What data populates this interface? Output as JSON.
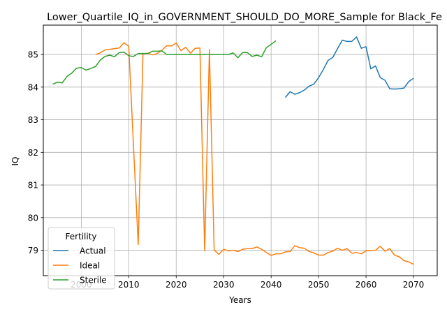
{
  "chart_data": {
    "type": "line",
    "title": "Lower_Quartile_IQ_in_GOVERNMENT_SHOULD_DO_MORE_Sample for Black_Fe",
    "xlabel": "Years",
    "ylabel": "IQ",
    "xlim": [
      1992,
      2075
    ],
    "ylim": [
      78.22,
      85.9
    ],
    "xticks": [
      2000,
      2010,
      2020,
      2030,
      2040,
      2050,
      2060,
      2070
    ],
    "yticks": [
      79,
      80,
      81,
      82,
      83,
      84,
      85
    ],
    "grid": true,
    "legend": {
      "title": "Fertility",
      "placement": "lower-left"
    },
    "series": [
      {
        "name": "Actual",
        "color": "#1f77b4",
        "points": [
          [
            2043,
            83.68
          ],
          [
            2044,
            83.86
          ],
          [
            2045,
            83.78
          ],
          [
            2046,
            83.83
          ],
          [
            2047,
            83.91
          ],
          [
            2048,
            84.03
          ],
          [
            2049,
            84.09
          ],
          [
            2050,
            84.29
          ],
          [
            2051,
            84.54
          ],
          [
            2052,
            84.82
          ],
          [
            2053,
            84.91
          ],
          [
            2054,
            85.18
          ],
          [
            2055,
            85.44
          ],
          [
            2056,
            85.4
          ],
          [
            2057,
            85.4
          ],
          [
            2058,
            85.54
          ],
          [
            2059,
            85.19
          ],
          [
            2060,
            85.24
          ],
          [
            2061,
            84.56
          ],
          [
            2062,
            84.65
          ],
          [
            2063,
            84.29
          ],
          [
            2064,
            84.21
          ],
          [
            2065,
            83.95
          ],
          [
            2066,
            83.94
          ],
          [
            2067,
            83.95
          ],
          [
            2068,
            83.97
          ],
          [
            2069,
            84.17
          ],
          [
            2070,
            84.27
          ]
        ]
      },
      {
        "name": "Ideal",
        "color": "#ff7f0e",
        "points": [
          [
            2003,
            85.0
          ],
          [
            2004,
            85.05
          ],
          [
            2005,
            85.14
          ],
          [
            2006,
            85.16
          ],
          [
            2007,
            85.18
          ],
          [
            2008,
            85.2
          ],
          [
            2009,
            85.36
          ],
          [
            2010,
            85.25
          ],
          [
            2011,
            82.2
          ],
          [
            2012,
            79.17
          ],
          [
            2013,
            85.02
          ],
          [
            2014,
            85.04
          ],
          [
            2015,
            84.99
          ],
          [
            2016,
            85.03
          ],
          [
            2017,
            85.13
          ],
          [
            2018,
            85.27
          ],
          [
            2019,
            85.26
          ],
          [
            2020,
            85.35
          ],
          [
            2021,
            85.12
          ],
          [
            2022,
            85.22
          ],
          [
            2023,
            85.04
          ],
          [
            2024,
            85.19
          ],
          [
            2025,
            85.2
          ],
          [
            2026,
            78.98
          ],
          [
            2027,
            85.15
          ],
          [
            2028,
            79.01
          ],
          [
            2029,
            78.87
          ],
          [
            2030,
            79.03
          ],
          [
            2031,
            78.98
          ],
          [
            2032,
            79.0
          ],
          [
            2033,
            78.96
          ],
          [
            2034,
            79.03
          ],
          [
            2035,
            79.05
          ],
          [
            2036,
            79.05
          ],
          [
            2037,
            79.1
          ],
          [
            2038,
            79.03
          ],
          [
            2039,
            78.93
          ],
          [
            2040,
            78.84
          ],
          [
            2041,
            78.89
          ],
          [
            2042,
            78.89
          ],
          [
            2043,
            78.95
          ],
          [
            2044,
            78.96
          ],
          [
            2045,
            79.14
          ],
          [
            2046,
            79.08
          ],
          [
            2047,
            79.06
          ],
          [
            2048,
            78.96
          ],
          [
            2049,
            78.92
          ],
          [
            2050,
            78.85
          ],
          [
            2051,
            78.85
          ],
          [
            2052,
            78.93
          ],
          [
            2053,
            78.97
          ],
          [
            2054,
            79.06
          ],
          [
            2055,
            79.0
          ],
          [
            2056,
            79.05
          ],
          [
            2057,
            78.91
          ],
          [
            2058,
            78.93
          ],
          [
            2059,
            78.89
          ],
          [
            2060,
            78.98
          ],
          [
            2061,
            78.99
          ],
          [
            2062,
            79.0
          ],
          [
            2063,
            79.12
          ],
          [
            2064,
            78.97
          ],
          [
            2065,
            79.05
          ],
          [
            2066,
            78.85
          ],
          [
            2067,
            78.8
          ],
          [
            2068,
            78.68
          ],
          [
            2069,
            78.64
          ],
          [
            2070,
            78.57
          ]
        ]
      },
      {
        "name": "Sterile",
        "color": "#2ca02c",
        "points": [
          [
            1994,
            84.09
          ],
          [
            1995,
            84.15
          ],
          [
            1996,
            84.13
          ],
          [
            1997,
            84.33
          ],
          [
            1998,
            84.43
          ],
          [
            1999,
            84.58
          ],
          [
            2000,
            84.6
          ],
          [
            2001,
            84.52
          ],
          [
            2002,
            84.57
          ],
          [
            2003,
            84.63
          ],
          [
            2004,
            84.83
          ],
          [
            2005,
            84.94
          ],
          [
            2006,
            84.98
          ],
          [
            2007,
            84.93
          ],
          [
            2008,
            85.06
          ],
          [
            2009,
            85.07
          ],
          [
            2010,
            84.96
          ],
          [
            2011,
            84.94
          ],
          [
            2012,
            85.03
          ],
          [
            2013,
            85.03
          ],
          [
            2014,
            85.03
          ],
          [
            2015,
            85.1
          ],
          [
            2016,
            85.1
          ],
          [
            2017,
            85.11
          ],
          [
            2018,
            85.0
          ],
          [
            2019,
            85.0
          ],
          [
            2020,
            85.0
          ],
          [
            2021,
            85.0
          ],
          [
            2022,
            85.0
          ],
          [
            2023,
            85.0
          ],
          [
            2024,
            85.0
          ],
          [
            2025,
            85.0
          ],
          [
            2026,
            85.0
          ],
          [
            2027,
            85.0
          ],
          [
            2028,
            85.0
          ],
          [
            2029,
            85.0
          ],
          [
            2030,
            85.0
          ],
          [
            2031,
            85.0
          ],
          [
            2032,
            85.05
          ],
          [
            2033,
            84.9
          ],
          [
            2034,
            85.06
          ],
          [
            2035,
            85.06
          ],
          [
            2036,
            84.94
          ],
          [
            2037,
            84.98
          ],
          [
            2038,
            84.93
          ],
          [
            2039,
            85.21
          ],
          [
            2040,
            85.31
          ],
          [
            2041,
            85.42
          ]
        ]
      }
    ]
  }
}
